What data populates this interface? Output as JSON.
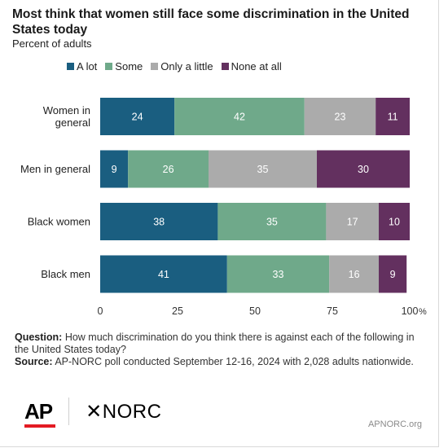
{
  "title": "Most think that women still face some discrimination in the United States today",
  "subtitle": "Percent of adults",
  "footnote": {
    "question_label": "Question:",
    "question_text": "How much discrimination do you think there is against each of the following in the United States today?",
    "source_label": "Source:",
    "source_text": "AP-NORC poll conducted September 12-16, 2024 with 2,028 adults nationwide."
  },
  "logos": {
    "ap": "AP",
    "norc": "NORC",
    "norc_symbol": "✕"
  },
  "site": "APNORC.org",
  "chart_data": {
    "type": "bar",
    "orientation": "horizontal",
    "stacked": true,
    "categories": [
      "Women in general",
      "Men in general",
      "Black women",
      "Black men"
    ],
    "category_lines": [
      [
        "Women in",
        "general"
      ],
      [
        "Men in general"
      ],
      [
        "Black women"
      ],
      [
        "Black men"
      ]
    ],
    "series": [
      {
        "name": "A lot",
        "color": "#1a5e80",
        "values": [
          24,
          9,
          38,
          41
        ]
      },
      {
        "name": "Some",
        "color": "#6fa98a",
        "values": [
          42,
          26,
          35,
          33
        ]
      },
      {
        "name": "Only a little",
        "color": "#ababab",
        "values": [
          23,
          35,
          17,
          16
        ]
      },
      {
        "name": "None at all",
        "color": "#63305f",
        "values": [
          11,
          30,
          10,
          9
        ]
      }
    ],
    "xlim": [
      0,
      100
    ],
    "ticks": [
      0,
      25,
      50,
      75,
      100
    ],
    "tick_labels": [
      "0",
      "25",
      "50",
      "75",
      "100"
    ],
    "unit": "%",
    "grid": false,
    "legend_position": "top"
  }
}
